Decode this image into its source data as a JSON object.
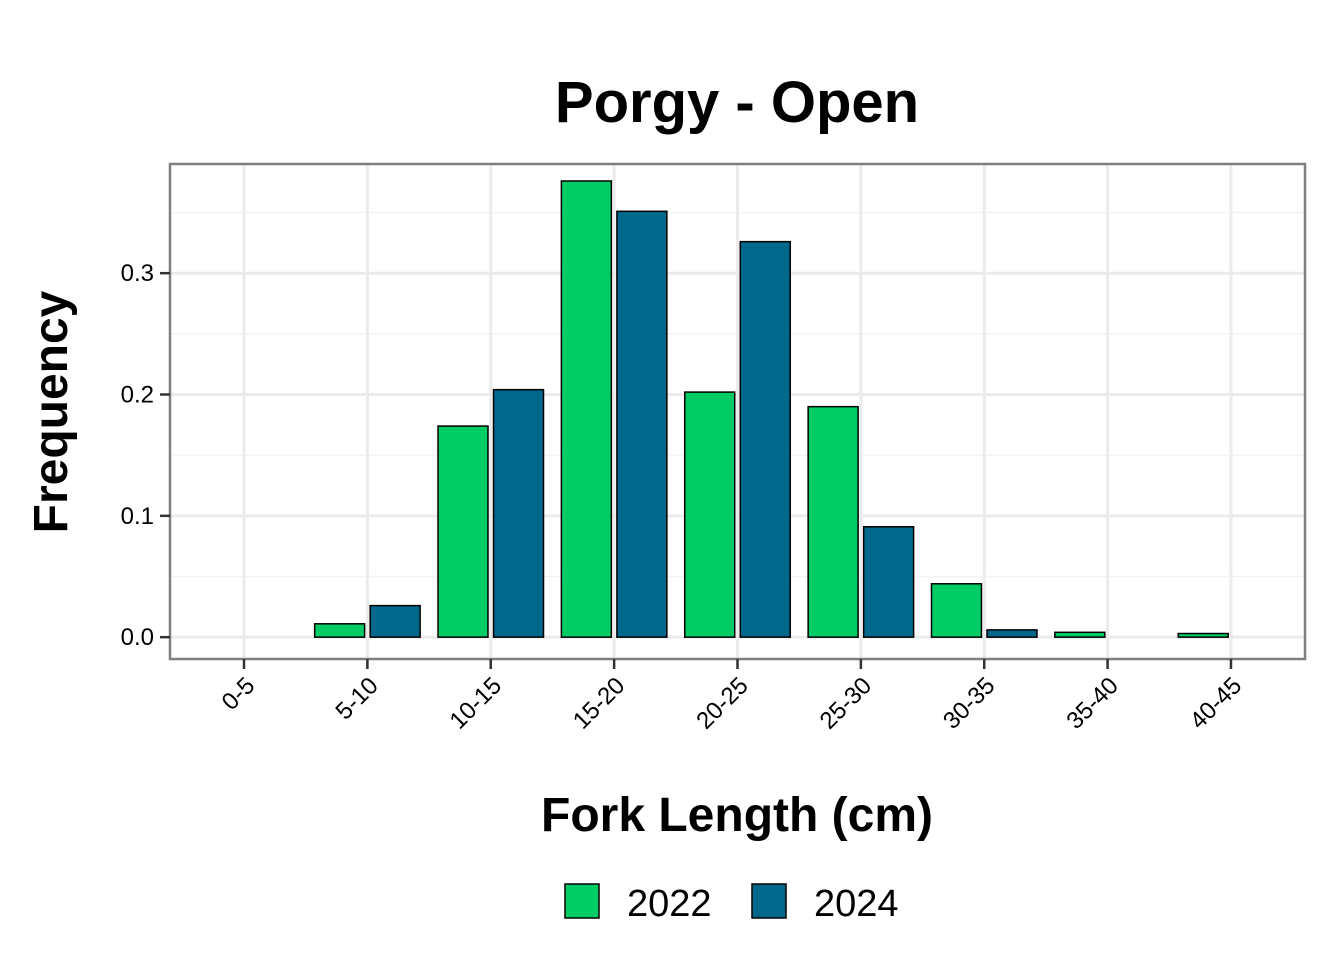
{
  "chart_data": {
    "type": "bar",
    "title": "Porgy - Open",
    "xlabel": "Fork Length (cm)",
    "ylabel": "Frequency",
    "categories": [
      "0-5",
      "5-10",
      "10-15",
      "15-20",
      "20-25",
      "25-30",
      "30-35",
      "35-40",
      "40-45"
    ],
    "series": [
      {
        "name": "2022",
        "color": "#00CC66",
        "values": [
          0.0,
          0.011,
          0.174,
          0.376,
          0.202,
          0.19,
          0.044,
          0.004,
          0.003
        ]
      },
      {
        "name": "2024",
        "color": "#00688B",
        "values": [
          0.0,
          0.026,
          0.204,
          0.351,
          0.326,
          0.091,
          0.006,
          0.0,
          0.0
        ]
      }
    ],
    "ylim": [
      -0.018,
      0.39
    ],
    "yticks": [
      0.0,
      0.1,
      0.2,
      0.3
    ],
    "ytick_labels": [
      "0.0",
      "0.1",
      "0.2",
      "0.3"
    ],
    "grid": true,
    "legend_position": "bottom"
  }
}
